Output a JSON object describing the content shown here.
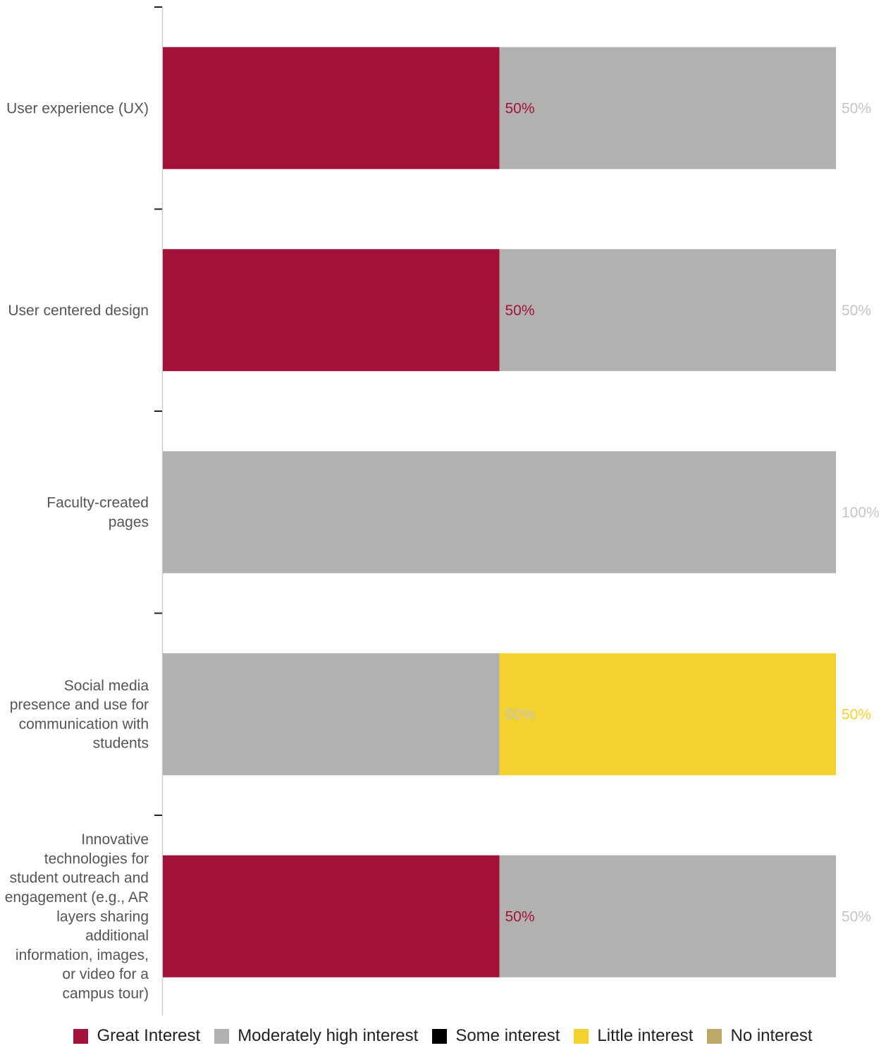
{
  "chart_data": {
    "type": "bar",
    "orientation": "horizontal",
    "stacked": true,
    "title": "",
    "xlabel": "",
    "ylabel": "",
    "xlim": [
      0,
      100
    ],
    "unit": "%",
    "grid": false,
    "legend_position": "bottom",
    "categories": [
      "User experience (UX)",
      "User centered design",
      "Faculty-created pages",
      "Social media presence and use for communication with students",
      "Innovative technologies for student outreach and engagement (e.g., AR layers sharing additional information, images, or video for a campus tour)"
    ],
    "category_label_lines": [
      [
        "User experience (UX)"
      ],
      [
        "User centered design"
      ],
      [
        "Faculty-created",
        "pages"
      ],
      [
        "Social media",
        "presence and use for",
        "communication with",
        "students"
      ],
      [
        "Innovative",
        "technologies for",
        "student outreach and",
        "engagement (e.g., AR",
        "layers sharing",
        "additional",
        "information, images,",
        "or video for a",
        "campus tour)"
      ]
    ],
    "series": [
      {
        "name": "Great Interest",
        "color": "#a3123b",
        "label_color": "#a3123b",
        "values": [
          50,
          50,
          0,
          0,
          50
        ]
      },
      {
        "name": "Moderately high interest",
        "color": "#b1b2b0",
        "label_color": "#c4c5c3",
        "values": [
          50,
          50,
          100,
          50,
          50
        ]
      },
      {
        "name": "Some interest",
        "color": "#000000",
        "label_color": "#000000",
        "values": [
          0,
          0,
          0,
          0,
          0
        ]
      },
      {
        "name": "Little interest",
        "color": "#f5d130",
        "label_color": "#f5d130",
        "values": [
          0,
          0,
          0,
          50,
          0
        ]
      },
      {
        "name": "No interest",
        "color": "#bfa96a",
        "label_color": "#bfa96a",
        "values": [
          0,
          0,
          0,
          0,
          0
        ]
      }
    ],
    "data_labels": [
      [
        "50%",
        "50%",
        "",
        "",
        ""
      ],
      [
        "50%",
        "50%",
        "",
        "",
        ""
      ],
      [
        "",
        "100%",
        "",
        "",
        ""
      ],
      [
        "",
        "50%",
        "",
        "50%",
        ""
      ],
      [
        "50%",
        "50%",
        "",
        "",
        ""
      ]
    ]
  }
}
